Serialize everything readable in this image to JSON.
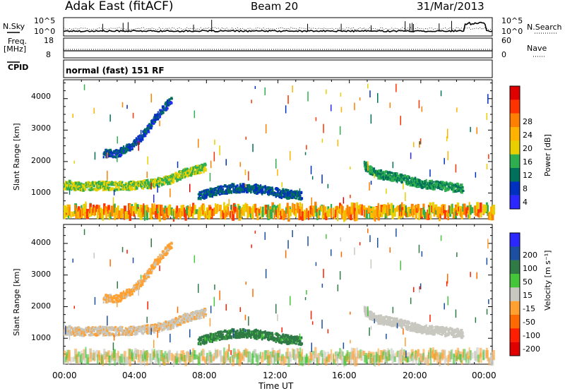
{
  "header": {
    "station": "Adak East (fitACF)",
    "beam": "Beam 20",
    "date": "31/Mar/2013"
  },
  "noise_panel": {
    "left_label": "N.Sky",
    "right_label": "N.Search",
    "left_ticks": [
      "10^5",
      "10^0"
    ],
    "right_ticks": [
      "10^5",
      "10^0"
    ]
  },
  "freq_panel": {
    "left_label_line1": "Freq.",
    "left_label_line2": "[MHz]",
    "left_ticks": [
      "18",
      "8"
    ],
    "right_label": "Nave",
    "right_ticks": [
      "60",
      "0"
    ]
  },
  "cpid_panel": {
    "left_label": "CPID",
    "text": "normal (fast) 151 RF"
  },
  "power_panel": {
    "ylabel": "Slant Range [km]",
    "yticks": [
      "4000",
      "3000",
      "2000",
      "1000"
    ],
    "colorbar_title": "Power [dB]",
    "colorbar_labels": [
      "28",
      "24",
      "20",
      "16",
      "12",
      "8",
      "4"
    ],
    "colorbar_colors": [
      "#e00000",
      "#ff3300",
      "#ff8000",
      "#ffb300",
      "#e8d000",
      "#2fae4f",
      "#00705a",
      "#0030c0",
      "#2a28ff"
    ]
  },
  "velocity_panel": {
    "ylabel": "Slant Range [km]",
    "yticks": [
      "4000",
      "3000",
      "2000",
      "1000"
    ],
    "colorbar_title": "Velocity [m s⁻¹]",
    "colorbar_labels": [
      "200",
      "100",
      "50",
      "15",
      "-15",
      "-50",
      "-100",
      "-200"
    ],
    "colorbar_colors": [
      "#2a28ff",
      "#1d4fa0",
      "#2f7a45",
      "#44c53a",
      "#c8c8c0",
      "#ffa030",
      "#ff6a00",
      "#ff1e00",
      "#e00000"
    ]
  },
  "x_axis": {
    "label": "Time UT",
    "ticks": [
      "00:00",
      "04:00",
      "08:00",
      "12:00",
      "16:00",
      "20:00",
      "00:00"
    ]
  },
  "chart_data": {
    "type": "heatmap",
    "title": "Adak East (fitACF) Beam 20 31/Mar/2013",
    "xlabel": "Time UT",
    "ylabel": "Slant Range [km]",
    "xlim_hours": [
      0,
      24
    ],
    "ylim_km": [
      180,
      4600
    ],
    "scatter_bands": [
      {
        "name": "main-echo",
        "power_db": 14,
        "velocity_ms": -10,
        "path": [
          [
            0,
            1250
          ],
          [
            1,
            1200
          ],
          [
            2,
            1230
          ],
          [
            3,
            1220
          ],
          [
            4,
            1250
          ],
          [
            5,
            1300
          ],
          [
            6,
            1450
          ],
          [
            6.8,
            1650
          ],
          [
            7.5,
            1750
          ],
          [
            7.9,
            1800
          ]
        ],
        "width_km": 260
      },
      {
        "name": "upper-arc",
        "power_db": 5,
        "velocity_ms": -25,
        "path": [
          [
            2.2,
            2250
          ],
          [
            3,
            2250
          ],
          [
            3.8,
            2500
          ],
          [
            4.5,
            2900
          ],
          [
            5,
            3300
          ],
          [
            5.5,
            3650
          ],
          [
            6,
            3950
          ]
        ],
        "width_km": 230
      },
      {
        "name": "low-band-09",
        "power_db": 6,
        "velocity_ms": 60,
        "path": [
          [
            7.5,
            900
          ],
          [
            8.5,
            1050
          ],
          [
            9.5,
            1150
          ],
          [
            10.5,
            1150
          ],
          [
            11.5,
            1050
          ],
          [
            12.5,
            950
          ],
          [
            13.3,
            900
          ]
        ],
        "width_km": 260
      },
      {
        "name": "evening-band",
        "power_db": 10,
        "velocity_ms": 0,
        "path": [
          [
            16.8,
            1850
          ],
          [
            17.5,
            1600
          ],
          [
            18.5,
            1500
          ],
          [
            19.5,
            1350
          ],
          [
            20.5,
            1250
          ],
          [
            21.5,
            1200
          ],
          [
            22.3,
            1150
          ]
        ],
        "width_km": 260
      },
      {
        "name": "near-range",
        "power_db": 20,
        "velocity_ms": 0,
        "path": [
          [
            0,
            400
          ],
          [
            24,
            400
          ]
        ],
        "width_km": 220
      }
    ],
    "grid": false
  }
}
